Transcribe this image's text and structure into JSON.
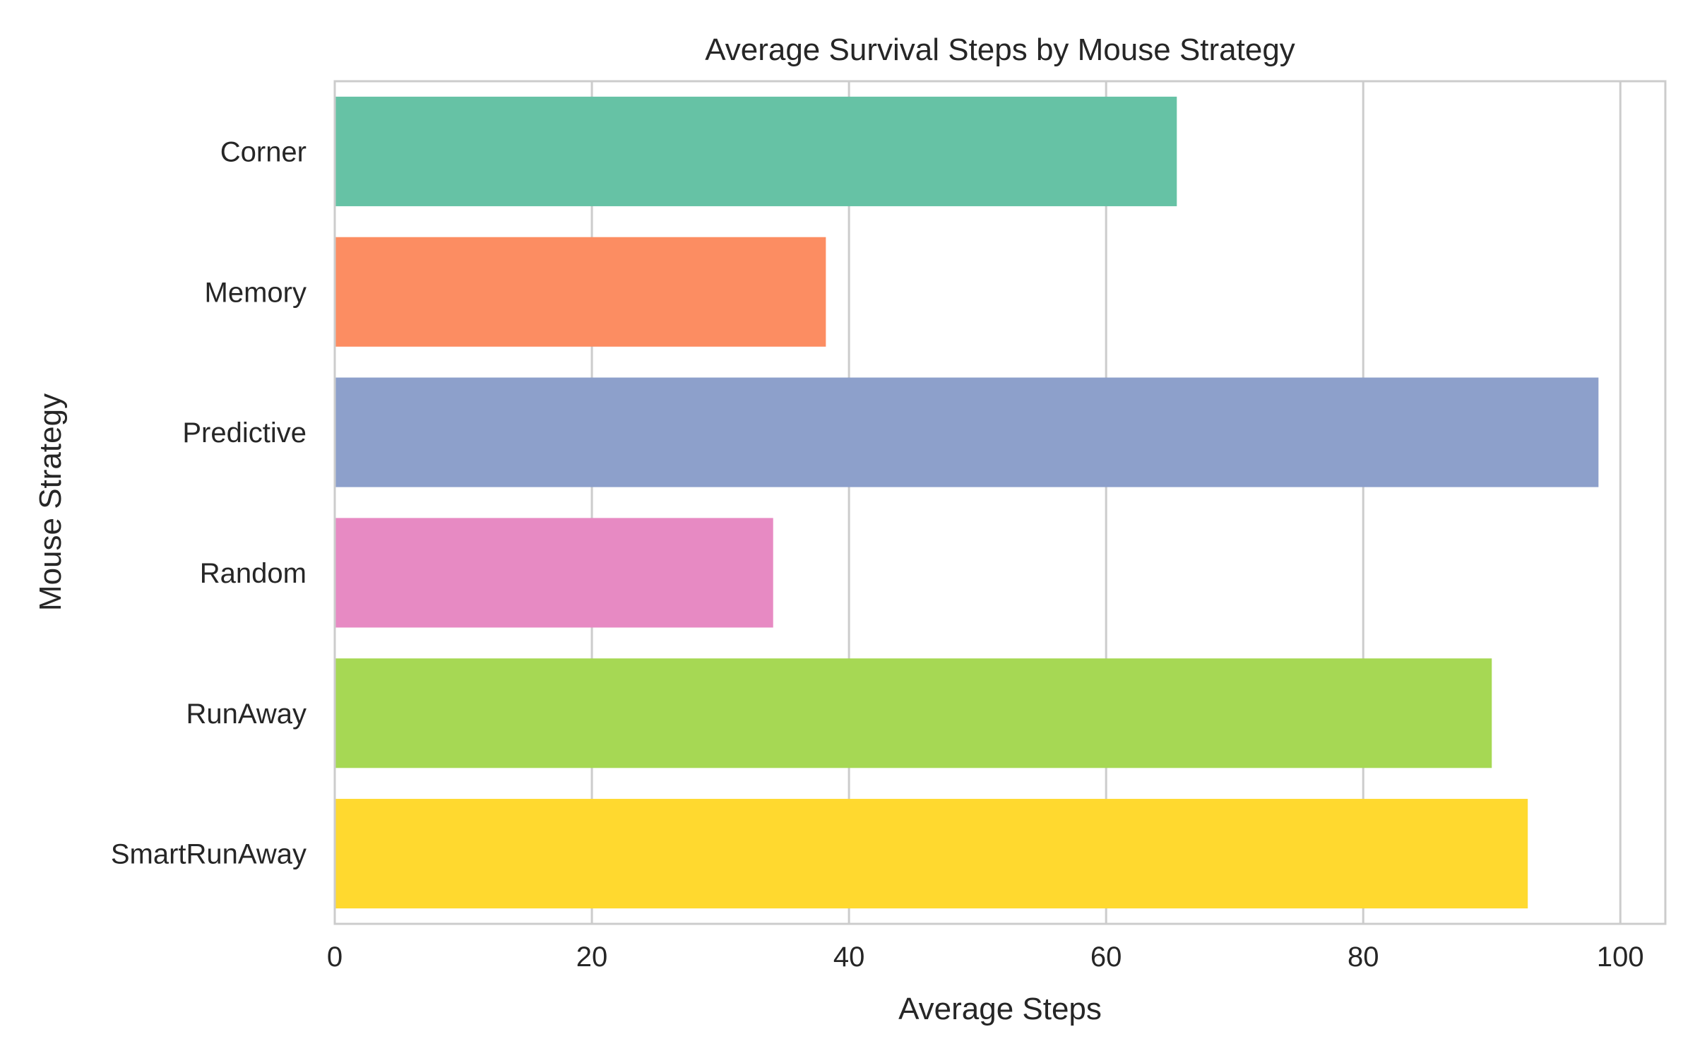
{
  "chart_data": {
    "type": "bar",
    "orientation": "horizontal",
    "title": "Average Survival Steps by Mouse Strategy",
    "xlabel": "Average Steps",
    "ylabel": "Mouse Strategy",
    "categories": [
      "Corner",
      "Memory",
      "Predictive",
      "Random",
      "RunAway",
      "SmartRunAway"
    ],
    "values": [
      65.5,
      38.2,
      98.3,
      34.1,
      90.0,
      92.8
    ],
    "colors": [
      "#66c2a5",
      "#fc8d62",
      "#8da0cb",
      "#e78ac3",
      "#a6d854",
      "#ffd92f"
    ],
    "xlim": [
      0,
      103.5
    ],
    "xticks": [
      "0",
      "20",
      "40",
      "60",
      "80",
      "100"
    ],
    "grid": "vertical",
    "grid_color": "#cccccc",
    "frame_color": "#cccccc",
    "legend": "none"
  }
}
